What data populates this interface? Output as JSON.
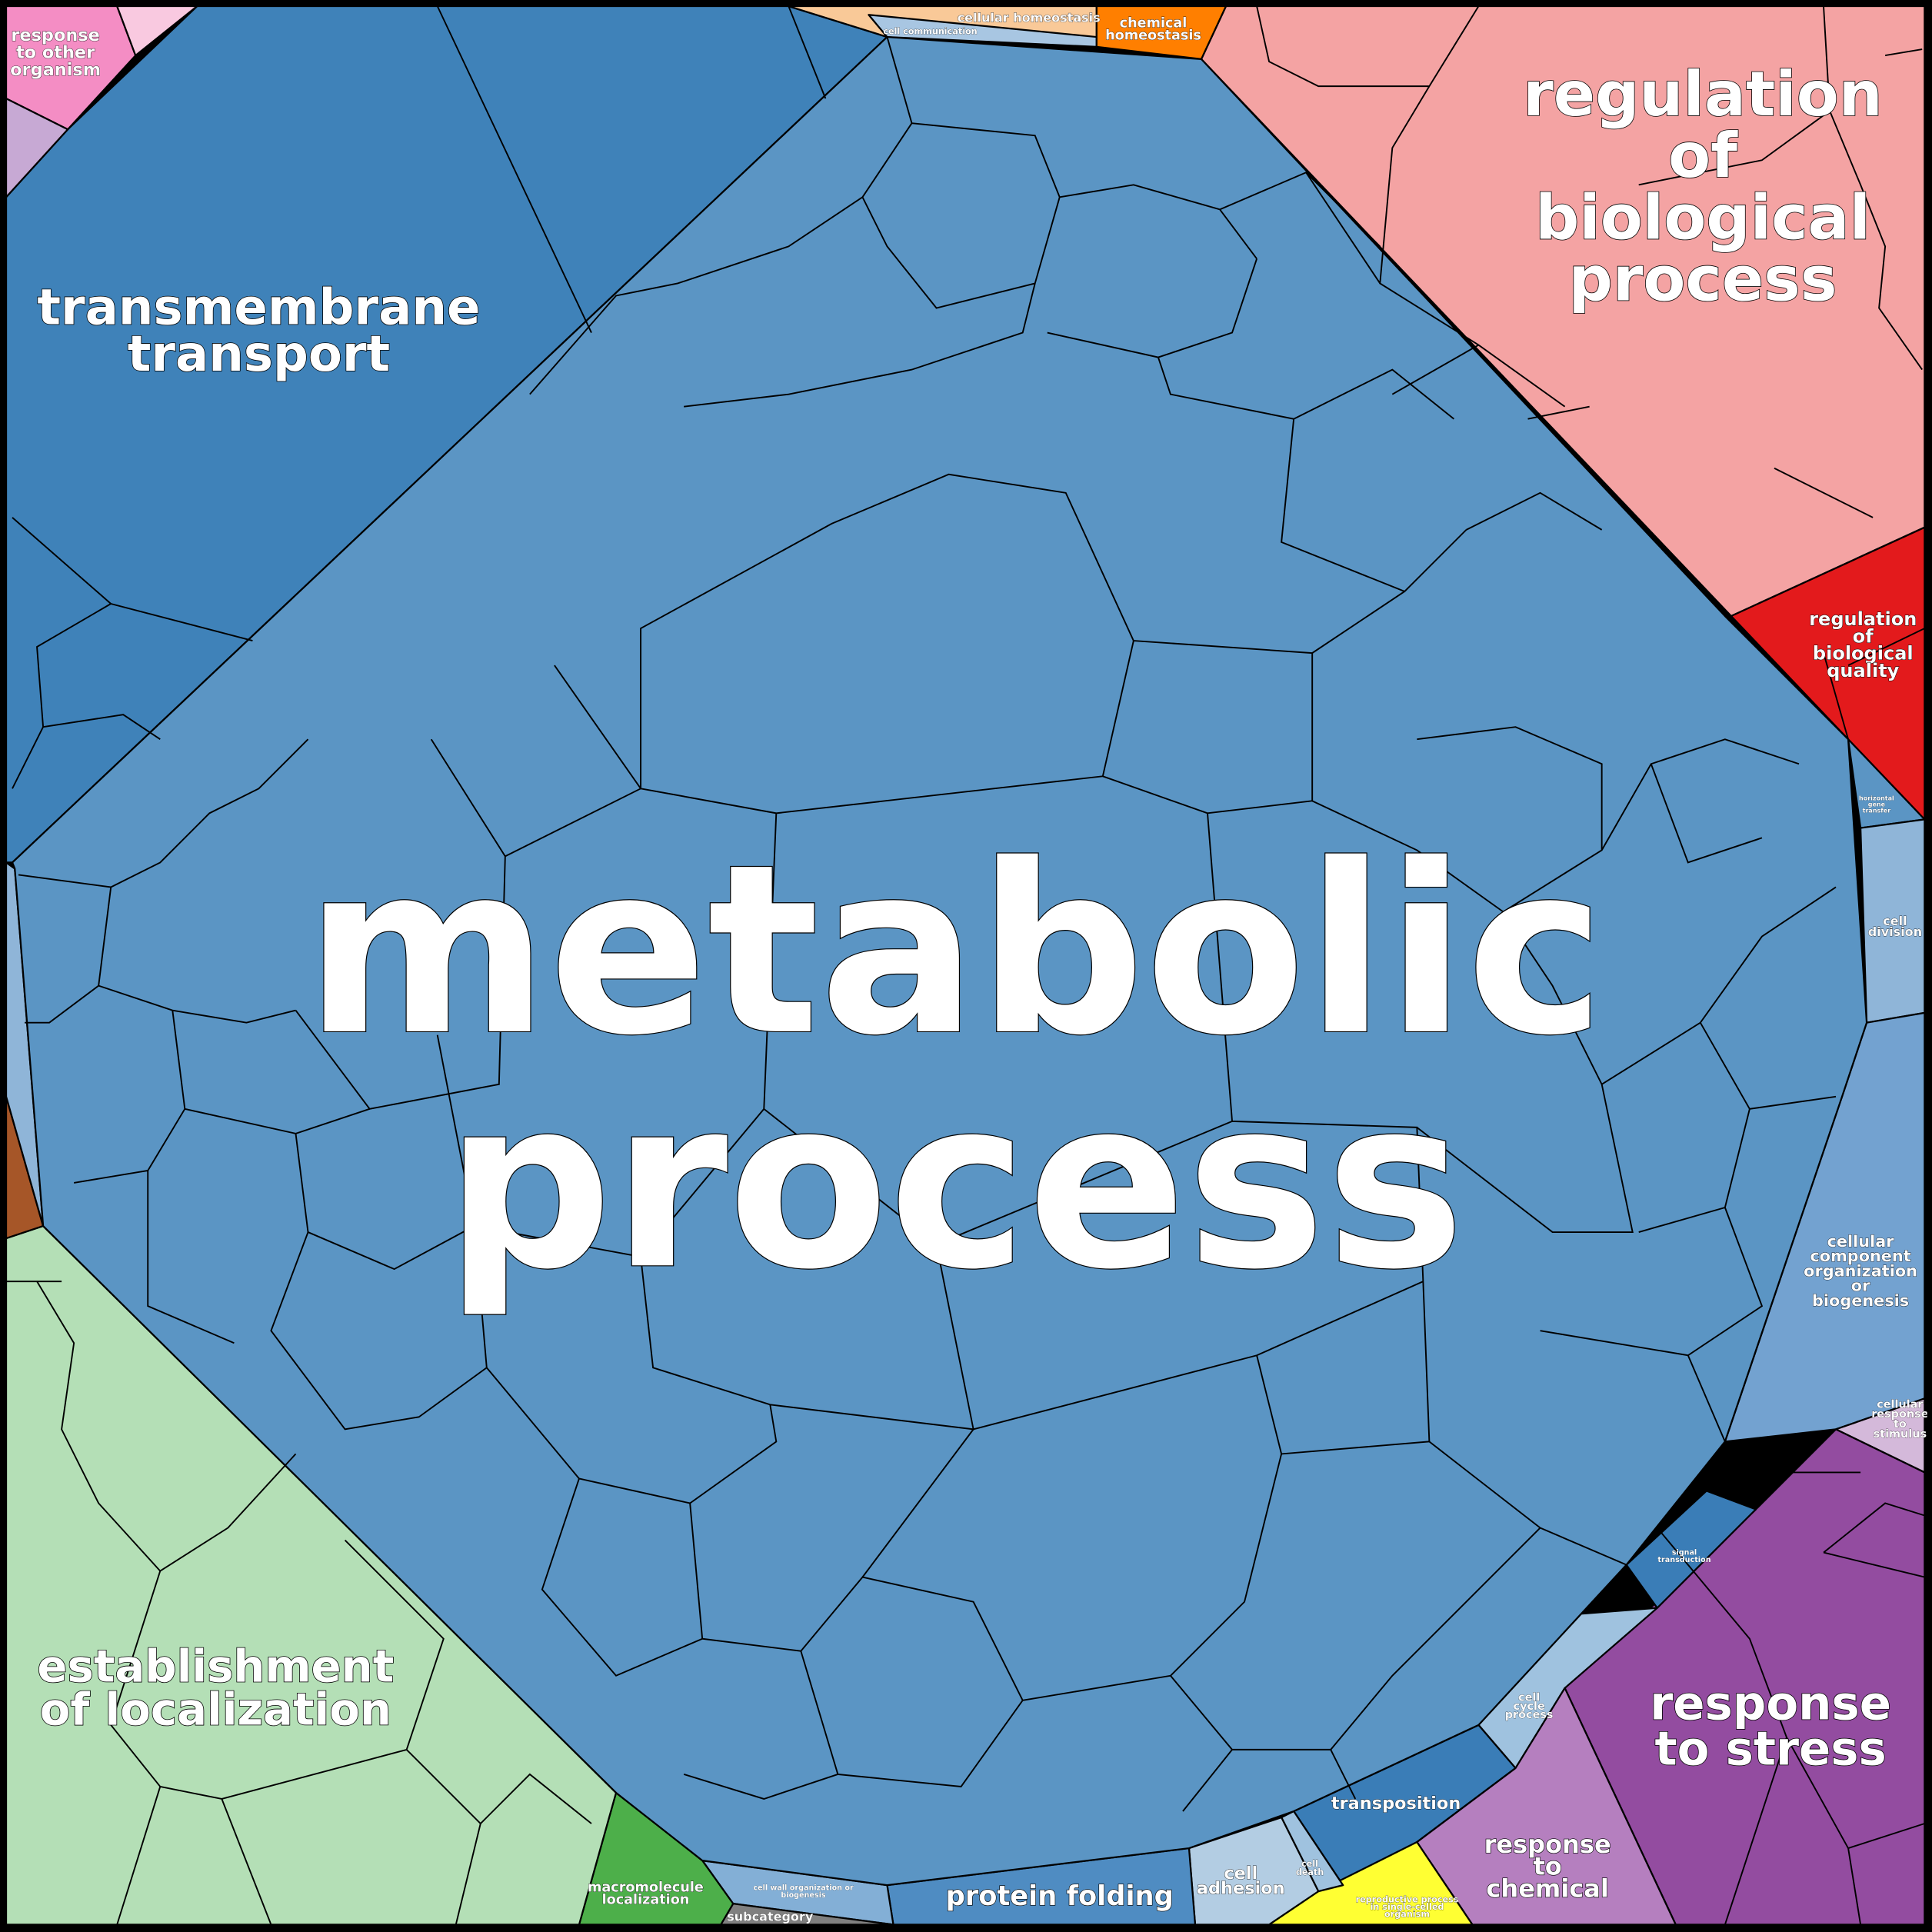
{
  "regions": [
    {
      "lines": [
        "metabolic",
        "process"
      ]
    },
    {
      "lines": [
        "transmembrane",
        "transport"
      ]
    },
    {
      "lines": [
        "regulation",
        "of",
        "biological",
        "process"
      ]
    },
    {
      "lines": [
        "establishment",
        "of localization"
      ]
    },
    {
      "lines": [
        "response",
        "to stress"
      ]
    },
    {
      "lines": [
        "regulation",
        "of",
        "biological",
        "quality"
      ]
    },
    {
      "lines": [
        "response",
        "to",
        "chemical"
      ]
    },
    {
      "lines": [
        "protein folding"
      ]
    },
    {
      "lines": [
        "transposition"
      ]
    },
    {
      "lines": [
        "cell",
        "adhesion"
      ]
    },
    {
      "lines": [
        "cellular",
        "component",
        "organization",
        "or",
        "biogenesis"
      ]
    },
    {
      "lines": [
        "cell",
        "division"
      ]
    },
    {
      "lines": [
        "macromolecule",
        "localization"
      ]
    },
    {
      "lines": [
        "chemical",
        "homeostasis"
      ]
    },
    {
      "lines": [
        "cellular homeostasis"
      ]
    },
    {
      "lines": [
        "cell communication"
      ]
    },
    {
      "lines": [
        "response",
        "to other",
        "organism"
      ]
    },
    {
      "lines": [
        "cell",
        "cycle",
        "process"
      ]
    },
    {
      "lines": [
        "cell",
        "death"
      ]
    },
    {
      "lines": [
        "reproductive process",
        "in single-celled",
        "organism"
      ]
    },
    {
      "lines": [
        "subcategory"
      ]
    },
    {
      "lines": [
        "signal",
        "transduction"
      ]
    },
    {
      "lines": [
        "cellular",
        "response",
        "to",
        "stimulus"
      ]
    },
    {
      "lines": [
        "cell wall organization or",
        "biogenesis"
      ]
    },
    {
      "lines": [
        "horizontal",
        "gene",
        "transfer"
      ]
    }
  ]
}
